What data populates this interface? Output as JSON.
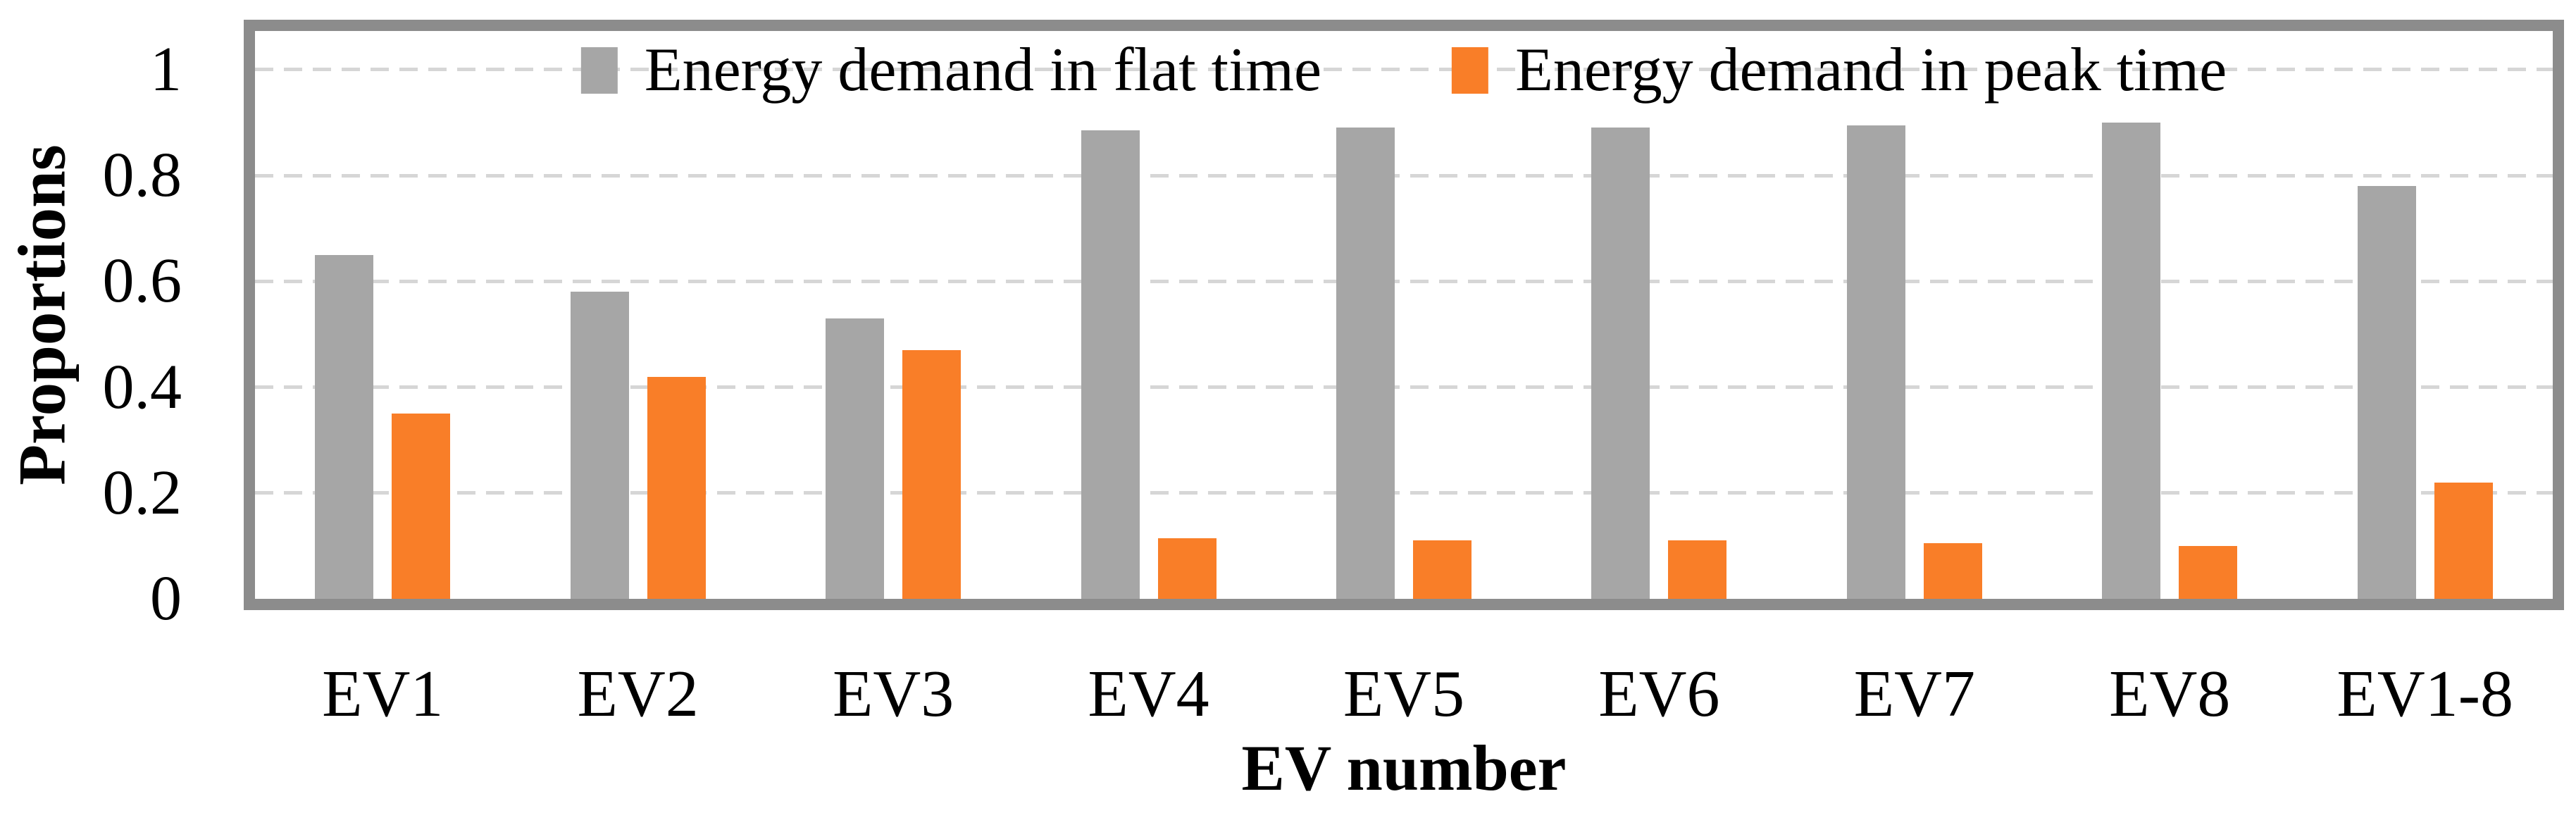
{
  "figure": {
    "background": "#ffffff",
    "plot_border_color": "#8C8C8C",
    "gridline_color": "#D6D6D6",
    "text_color": "#000000"
  },
  "chart_data": {
    "type": "bar",
    "title": "",
    "categories": [
      "EV1",
      "EV2",
      "EV3",
      "EV4",
      "EV5",
      "EV6",
      "EV7",
      "EV8",
      "EV1-8"
    ],
    "series": [
      {
        "name": "Energy demand in flat time",
        "color": "#A6A6A6",
        "values": [
          0.65,
          0.58,
          0.53,
          0.885,
          0.89,
          0.89,
          0.895,
          0.9,
          0.78
        ]
      },
      {
        "name": "Energy demand in peak time",
        "color": "#F97E28",
        "values": [
          0.35,
          0.42,
          0.47,
          0.115,
          0.11,
          0.11,
          0.105,
          0.1,
          0.22
        ]
      }
    ],
    "xlabel": "EV number",
    "ylabel": "Proportions",
    "ylim": [
      0,
      1.08
    ],
    "yticks": [
      {
        "label": "0",
        "value": 0
      },
      {
        "label": "0.2",
        "value": 0.2
      },
      {
        "label": "0.4",
        "value": 0.4
      },
      {
        "label": "0.6",
        "value": 0.6
      },
      {
        "label": "0.8",
        "value": 0.8
      },
      {
        "label": "1",
        "value": 1
      }
    ],
    "grid": "horizontal-dashed",
    "legend_position": "top-center-inside"
  }
}
